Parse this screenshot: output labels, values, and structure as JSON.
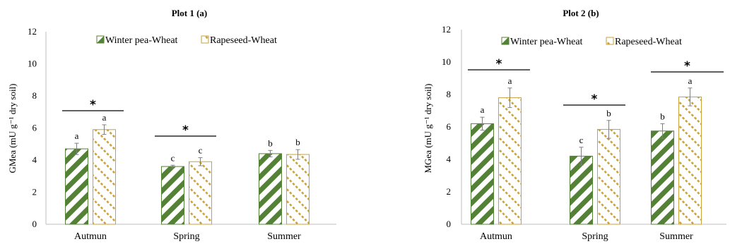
{
  "colors": {
    "winter_pea": "#538135",
    "rapeseed": "#c9a23b",
    "axis": "#bfbfbf",
    "error_bar": "#7f7f7f",
    "text": "#000000"
  },
  "chart_data": [
    {
      "type": "bar",
      "title": "Plot 1 (a)",
      "ylabel": "GMea (mU g⁻¹ dry soil)",
      "ylim": [
        0,
        12
      ],
      "yticks": [
        "0",
        "2",
        "4",
        "6",
        "8",
        "10",
        "12"
      ],
      "categories": [
        "Autmun",
        "Spring",
        "Summer"
      ],
      "legend": "top",
      "series": [
        {
          "name": "Winter pea-Wheat",
          "values": [
            4.7,
            3.6,
            4.4
          ],
          "errors": [
            0.35,
            0.08,
            0.2
          ],
          "letters": [
            "a",
            "c",
            "b"
          ]
        },
        {
          "name": "Rapeseed-Wheat",
          "values": [
            5.9,
            3.9,
            4.35
          ],
          "errors": [
            0.3,
            0.25,
            0.3
          ],
          "letters": [
            "a",
            "c",
            "b"
          ]
        }
      ],
      "significance": [
        {
          "category_index": 0,
          "label": "*"
        },
        {
          "category_index": 1,
          "label": "*"
        }
      ]
    },
    {
      "type": "bar",
      "title": "Plot 2 (b)",
      "ylabel": "MGea (mU g⁻¹ dry soil)",
      "ylim": [
        0,
        12
      ],
      "yticks": [
        "0",
        "2",
        "4",
        "6",
        "8",
        "10",
        "12"
      ],
      "categories": [
        "Autmun",
        "Spring",
        "Summer"
      ],
      "legend": "top",
      "series": [
        {
          "name": "Winter pea-Wheat",
          "values": [
            6.2,
            4.2,
            5.75
          ],
          "errors": [
            0.4,
            0.55,
            0.45
          ],
          "letters": [
            "a",
            "c",
            "b"
          ]
        },
        {
          "name": "Rapeseed-Wheat",
          "values": [
            7.8,
            5.85,
            7.85
          ],
          "errors": [
            0.6,
            0.55,
            0.55
          ],
          "letters": [
            "a",
            "b",
            "a"
          ]
        }
      ],
      "significance": [
        {
          "category_index": 0,
          "label": "*"
        },
        {
          "category_index": 1,
          "label": "*"
        },
        {
          "category_index": 2,
          "label": "*"
        }
      ]
    }
  ]
}
